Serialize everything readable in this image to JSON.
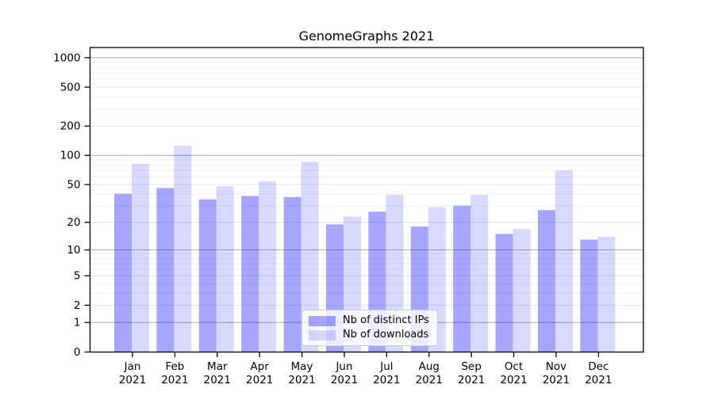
{
  "title": "GenomeGraphs 2021",
  "legend": {
    "items": [
      {
        "label": "Nb of distinct IPs",
        "color": "rgba(0,0,255,0.35)"
      },
      {
        "label": "Nb of downloads",
        "color": "rgba(0,0,255,0.15)"
      }
    ]
  },
  "y_axis": {
    "tick_labels": [
      "0",
      "1",
      "2",
      "5",
      "10",
      "20",
      "50",
      "100",
      "200",
      "500",
      "1000"
    ],
    "ticks": [
      0,
      1,
      2,
      5,
      10,
      20,
      50,
      100,
      200,
      500,
      1000
    ]
  },
  "x_axis": {
    "months": [
      "Jan",
      "Feb",
      "Mar",
      "Apr",
      "May",
      "Jun",
      "Jul",
      "Aug",
      "Sep",
      "Oct",
      "Nov",
      "Dec"
    ],
    "year": "2021"
  },
  "colors": {
    "bar_ips": "rgba(0,0,255,0.35)",
    "bar_downloads": "rgba(0,0,255,0.15)",
    "grid_major": "#b0b0b0",
    "grid_tick": "#e4e4e4",
    "grid_minor": "#f0f0f0",
    "frame": "#000000",
    "text": "#000000",
    "background": "#ffffff"
  },
  "chart_data": {
    "type": "bar",
    "title": "GenomeGraphs 2021",
    "categories": [
      "Jan 2021",
      "Feb 2021",
      "Mar 2021",
      "Apr 2021",
      "May 2021",
      "Jun 2021",
      "Jul 2021",
      "Aug 2021",
      "Sep 2021",
      "Oct 2021",
      "Nov 2021",
      "Dec 2021"
    ],
    "series": [
      {
        "name": "Nb of distinct IPs",
        "values": [
          40,
          46,
          35,
          38,
          37,
          19,
          26,
          18,
          30,
          15,
          27,
          13
        ]
      },
      {
        "name": "Nb of downloads",
        "values": [
          82,
          126,
          48,
          54,
          86,
          23,
          39,
          29,
          39,
          17,
          70,
          14
        ]
      }
    ],
    "xlabel": "",
    "ylabel": "",
    "y_scale": "log1p",
    "yticks": [
      0,
      1,
      2,
      5,
      10,
      20,
      50,
      100,
      200,
      500,
      1000
    ],
    "ylim": [
      0,
      1270
    ],
    "grid": true,
    "legend_position": "lower center"
  }
}
